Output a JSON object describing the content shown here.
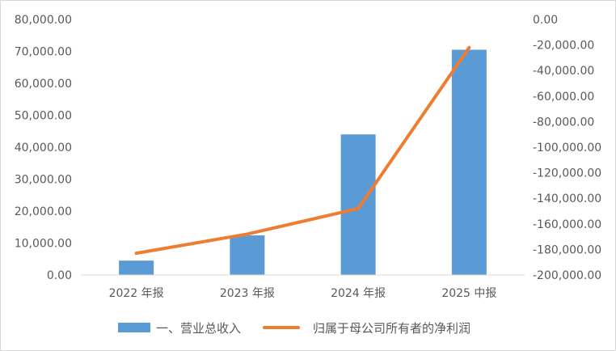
{
  "chart_data": {
    "type": "bar+line",
    "categories": [
      "2022 年报",
      "2023 年报",
      "2024 年报",
      "2025 中报"
    ],
    "series": [
      {
        "name": "一、营业总收入",
        "type": "bar",
        "axis": "left",
        "color": "#5b9bd5",
        "values": [
          4500,
          12400,
          44000,
          70500
        ]
      },
      {
        "name": "归属于母公司所有者的净利润",
        "type": "line",
        "axis": "right",
        "color": "#ed7d31",
        "values": [
          -183000,
          -168000,
          -148000,
          -22000
        ]
      }
    ],
    "y_left": {
      "ylim": [
        0,
        80000
      ],
      "ticks": [
        "80,000.00",
        "70,000.00",
        "60,000.00",
        "50,000.00",
        "40,000.00",
        "30,000.00",
        "20,000.00",
        "10,000.00",
        "0.00"
      ]
    },
    "y_right": {
      "ylim": [
        -200000,
        0
      ],
      "ticks": [
        "0.00",
        "-20,000.00",
        "-40,000.00",
        "-60,000.00",
        "-80,000.00",
        "-100,000.00",
        "-120,000.00",
        "-140,000.00",
        "-160,000.00",
        "-180,000.00",
        "-200,000.00"
      ]
    },
    "grid": false,
    "legend_position": "bottom"
  }
}
